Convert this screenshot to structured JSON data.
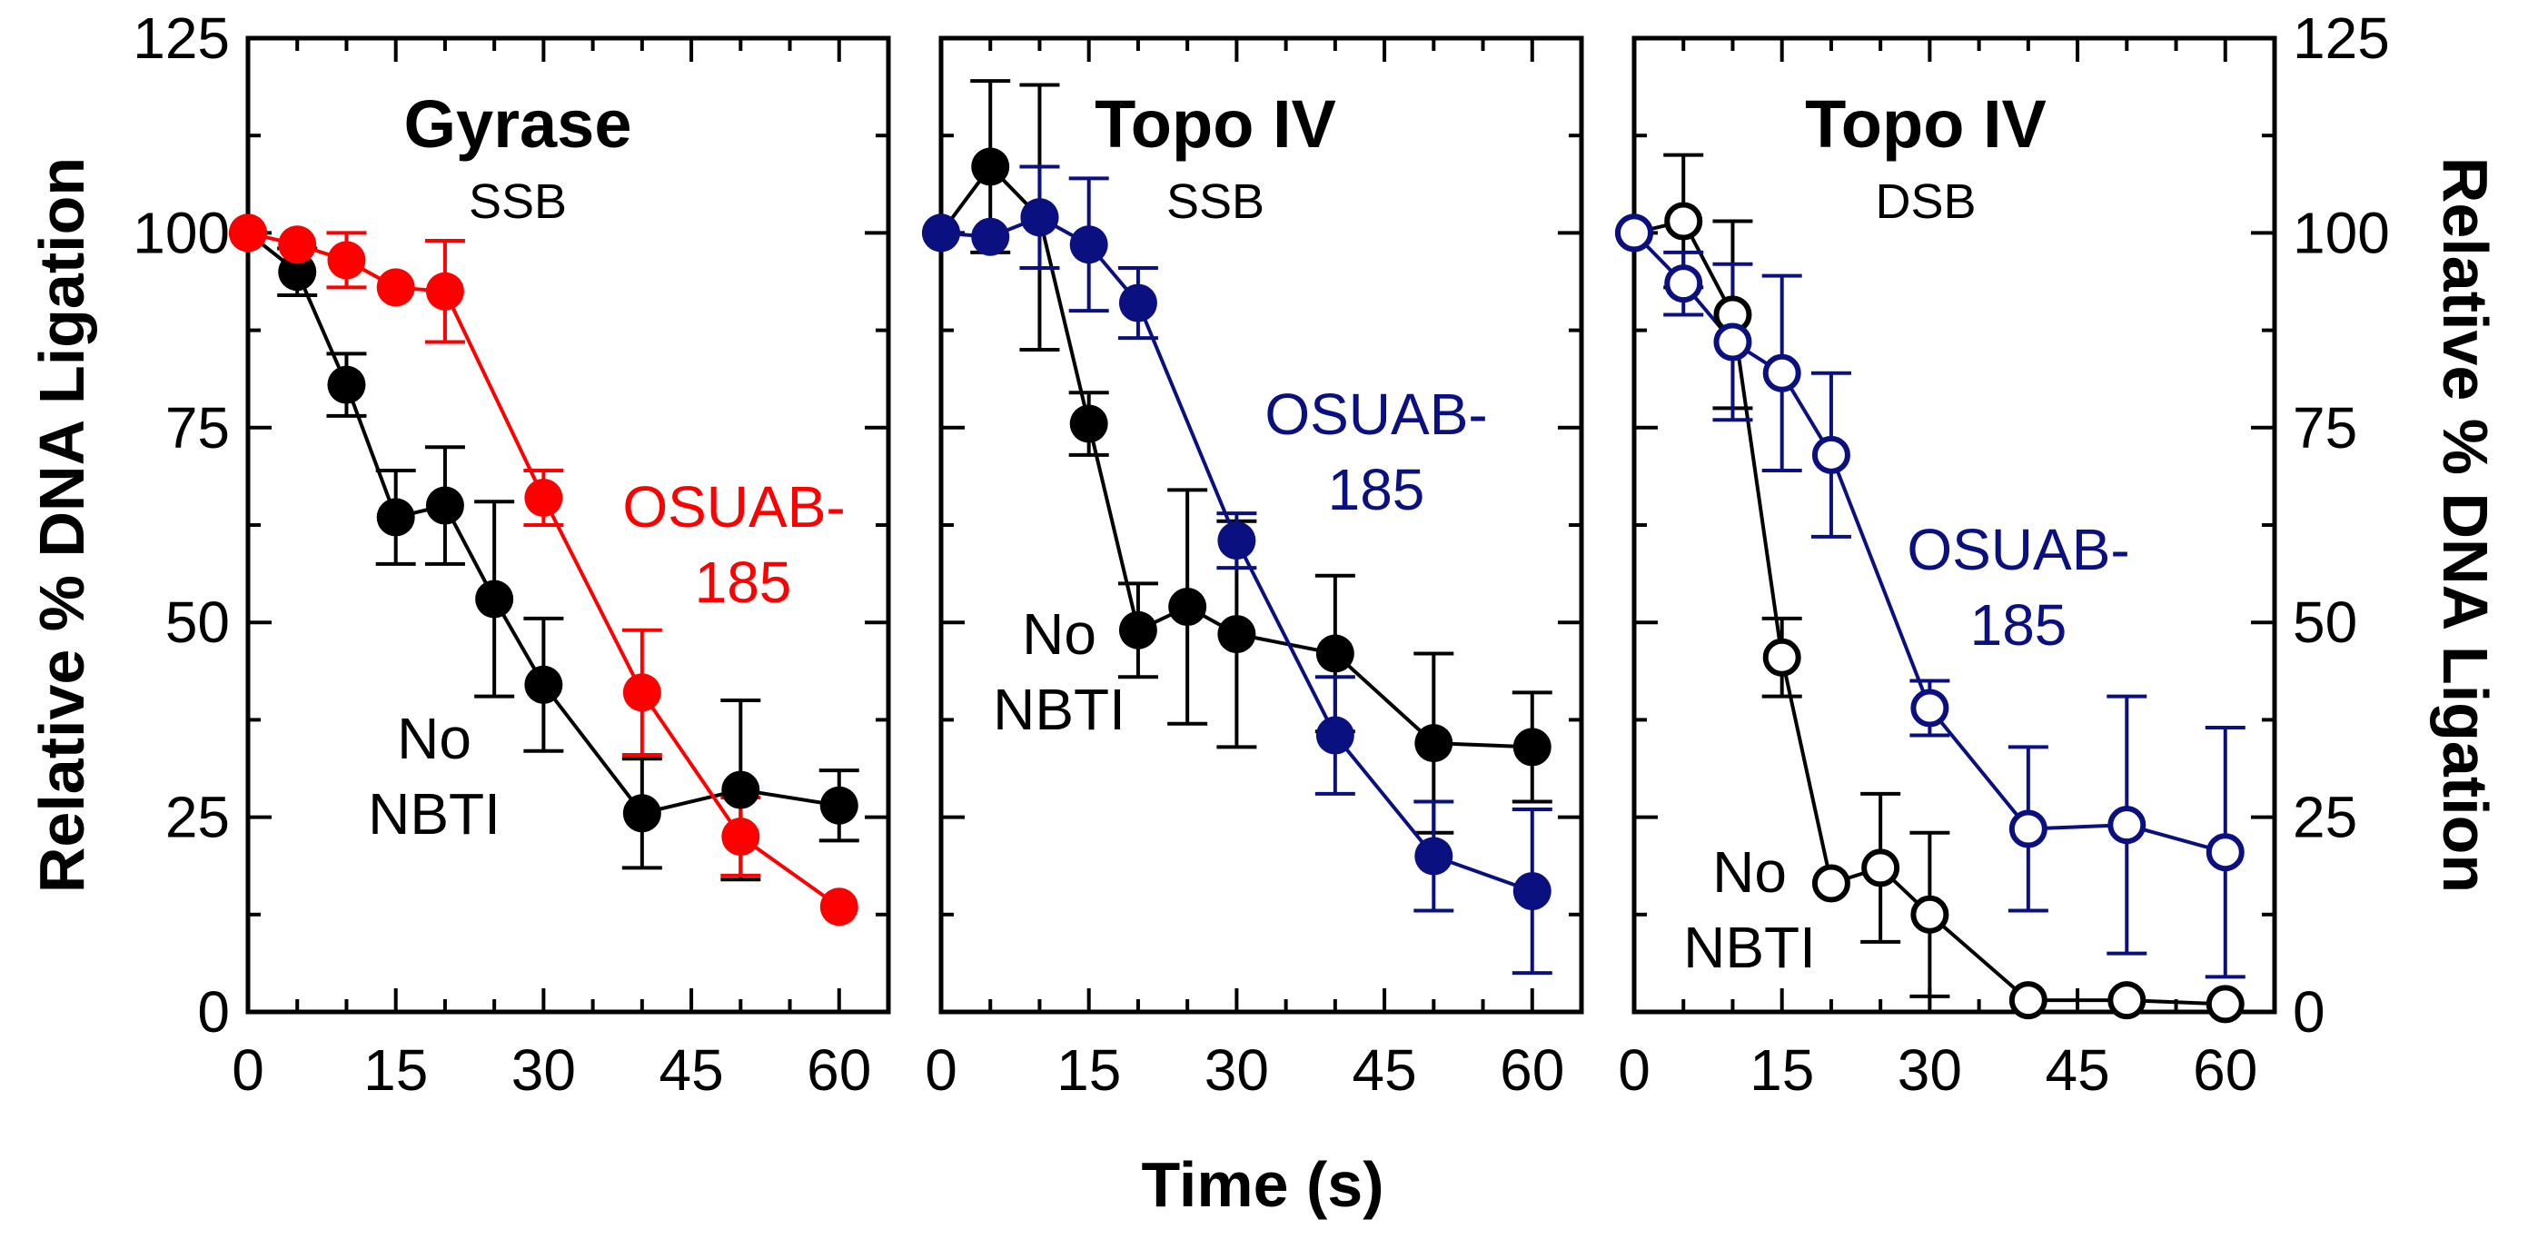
{
  "figure": {
    "xlabel": "Time (s)",
    "ylabel_left": "Relative % DNA Ligation",
    "ylabel_right": "Relative % DNA Ligation"
  },
  "colors": {
    "black": "#000000",
    "red": "#ff0000",
    "navy": "#0a1080"
  },
  "chart_data": [
    {
      "type": "line",
      "title": "Gyrase",
      "subtitle": "SSB",
      "xlabel": "Time (s)",
      "ylabel": "Relative % DNA Ligation",
      "xlim": [
        0,
        65
      ],
      "ylim": [
        0,
        125
      ],
      "xticks": [
        0,
        15,
        30,
        45,
        60
      ],
      "yticks": [
        0,
        25,
        50,
        75,
        100,
        125
      ],
      "series": [
        {
          "name": "No NBTI",
          "label_lines": [
            "No",
            "NBTI"
          ],
          "color": "#000000",
          "marker": "filled",
          "x": [
            0,
            5,
            10,
            15,
            20,
            25,
            30,
            40,
            50,
            60
          ],
          "y": [
            100,
            95,
            80.5,
            63.5,
            65,
            53,
            42,
            25.5,
            28.5,
            26.5
          ],
          "err": [
            0,
            3,
            4,
            6,
            7.5,
            12.5,
            8.5,
            7,
            11.5,
            4.5
          ]
        },
        {
          "name": "OSUAB-185",
          "label_lines": [
            "OSUAB-",
            "185"
          ],
          "color": "#ff0000",
          "marker": "filled",
          "x": [
            0,
            5,
            10,
            15,
            20,
            30,
            40,
            50,
            60
          ],
          "y": [
            100,
            98.5,
            96.5,
            93,
            92.5,
            66,
            41,
            22.5,
            13.5
          ],
          "err": [
            0,
            0,
            3.5,
            0,
            6.5,
            3.5,
            8,
            5,
            0
          ]
        }
      ]
    },
    {
      "type": "line",
      "title": "Topo IV",
      "subtitle": "SSB",
      "xlabel": "Time (s)",
      "ylabel": "Relative % DNA Ligation",
      "xlim": [
        0,
        65
      ],
      "ylim": [
        0,
        125
      ],
      "xticks": [
        0,
        15,
        30,
        45,
        60
      ],
      "yticks": [
        0,
        25,
        50,
        75,
        100,
        125
      ],
      "series": [
        {
          "name": "No NBTI",
          "label_lines": [
            "No",
            "NBTI"
          ],
          "color": "#000000",
          "marker": "filled",
          "x": [
            0,
            5,
            10,
            15,
            20,
            25,
            30,
            40,
            50,
            60
          ],
          "y": [
            100,
            108.5,
            102,
            75.5,
            49,
            52,
            48.5,
            46,
            34.5,
            34
          ],
          "err": [
            0,
            11,
            17,
            4,
            6,
            15,
            14.5,
            10,
            11.5,
            7
          ]
        },
        {
          "name": "OSUAB-185",
          "label_lines": [
            "OSUAB-",
            "185"
          ],
          "color": "#0a1080",
          "marker": "filled",
          "x": [
            0,
            5,
            10,
            15,
            20,
            30,
            40,
            50,
            60
          ],
          "y": [
            100,
            99.5,
            102,
            98.5,
            91,
            60.5,
            35.5,
            20,
            15.5
          ],
          "err": [
            0,
            0,
            6.5,
            8.5,
            4.5,
            3.5,
            7.5,
            7,
            10.5
          ]
        }
      ]
    },
    {
      "type": "line",
      "title": "Topo IV",
      "subtitle": "DSB",
      "xlabel": "Time (s)",
      "ylabel": "Relative % DNA Ligation",
      "xlim": [
        0,
        65
      ],
      "ylim": [
        0,
        125
      ],
      "xticks": [
        0,
        15,
        30,
        45,
        60
      ],
      "yticks": [
        0,
        25,
        50,
        75,
        100,
        125
      ],
      "series": [
        {
          "name": "No NBTI",
          "label_lines": [
            "No",
            "NBTI"
          ],
          "color": "#000000",
          "marker": "open",
          "x": [
            0,
            5,
            10,
            15,
            20,
            25,
            30,
            40,
            50,
            60
          ],
          "y": [
            100,
            101.5,
            89.5,
            45.5,
            16.5,
            18.5,
            12.5,
            1.5,
            1.5,
            1
          ],
          "err": [
            0,
            8.5,
            12,
            5,
            0,
            9.5,
            10.5,
            0,
            0,
            0
          ]
        },
        {
          "name": "OSUAB-185",
          "label_lines": [
            "OSUAB-",
            "185"
          ],
          "color": "#0a1080",
          "marker": "open",
          "x": [
            0,
            5,
            10,
            15,
            20,
            30,
            40,
            50,
            60
          ],
          "y": [
            100,
            93.5,
            86,
            82,
            71.5,
            39,
            23.5,
            24,
            20.5
          ],
          "err": [
            0,
            4,
            10,
            12.5,
            10.5,
            3.5,
            10.5,
            16.5,
            16
          ]
        }
      ]
    }
  ]
}
